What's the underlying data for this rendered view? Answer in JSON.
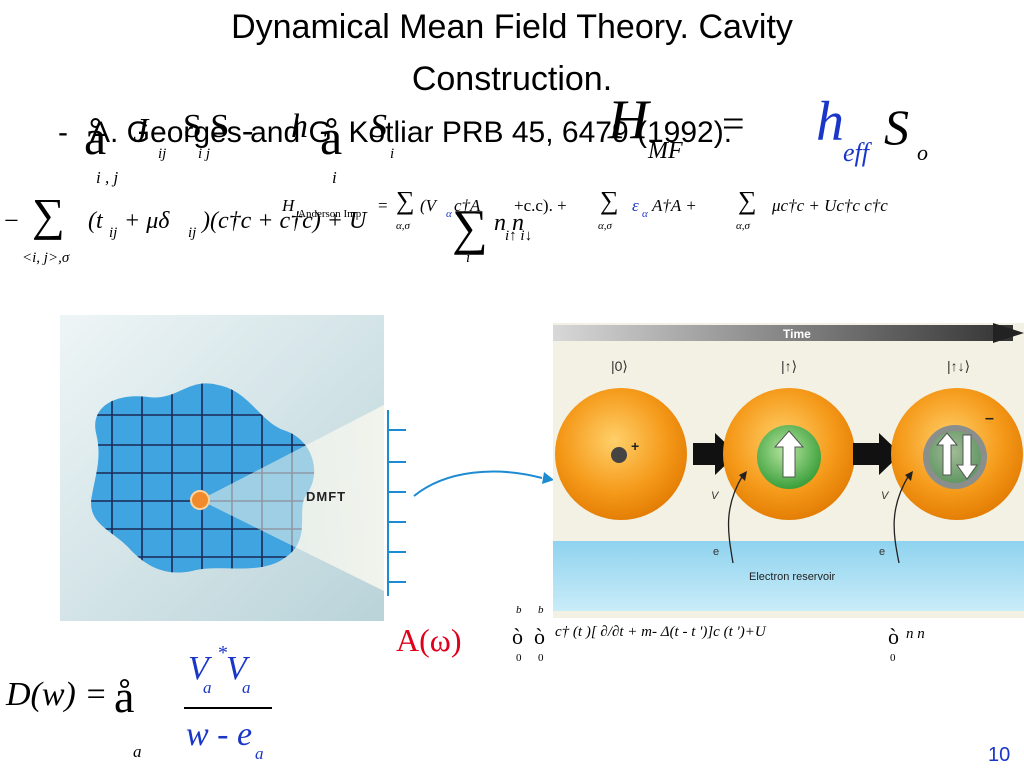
{
  "title": {
    "line1": "Dynamical Mean Field Theory. Cavity",
    "line2": "Construction."
  },
  "bullet": {
    "dash": "-",
    "citation": "A. Georges and G. Kotliar PRB 45, 6479 (1992)."
  },
  "overlay_eq": {
    "sum1": "å",
    "sum1_sub": "i , j",
    "term_j": "J",
    "term_j_sub": "ij",
    "term_s": "S S",
    "term_s_sub": "i  j",
    "minus": "-",
    "term_h": "h",
    "sum2": "å",
    "sum2_sub": "i",
    "term_si": "S",
    "term_si_sub": "i",
    "H": "H",
    "H_sub": "MF",
    "eq": "=",
    "h_eff": "h",
    "h_eff_sub": "eff",
    "S_o": "S",
    "S_o_sub": "o"
  },
  "hubbard": {
    "lead": "−",
    "sum": "∑",
    "sum_sub": "<i, j>,σ",
    "body": "(t",
    "t_sub": "ij",
    "mid": " + μδ",
    "delta_sub": "ij",
    "ops": ")(c†c + c†c) + U",
    "sum2": "∑",
    "sum2_sub": "i",
    "n_term": "n n",
    "n_sub": "i↑ i↓"
  },
  "anderson": {
    "H": "H",
    "H_sub": "Anderson Imp",
    "eq": "=",
    "sum1": "∑",
    "sum1_sub": "α,σ",
    "body1": "(V",
    "V_sub": "α",
    "body1b": "c†A",
    "body1c": "+c.c). +",
    "sum2": "∑",
    "sum2_sub": "α,σ",
    "eps": "ε",
    "eps_sub": "α",
    "body2": "A†A +",
    "sum3": "∑",
    "sum3_sub": "α,σ",
    "body3": "μc†c + Uc†c c†c"
  },
  "dmft_figure": {
    "label": "DMFT"
  },
  "time_figure": {
    "time_label": "Time",
    "state1": "|0⟩",
    "state2": "|↑⟩",
    "state3": "|↑↓⟩",
    "plus": "+",
    "minus": "–",
    "vv1": "V",
    "vv2": "V",
    "e1": "e",
    "e2": "e",
    "reservoir": "Electron reservoir"
  },
  "A_omega": "A(ω)",
  "action": {
    "b1": "b",
    "b2": "b",
    "z1": "0",
    "z2": "0",
    "int1": "ò",
    "int2": "ò",
    "body": "c† (t )[ ∂/∂t + m-  Δ(t - t ')]c  (t ')+U",
    "delta_part": "Δ(t - t ')",
    "int3": "ò",
    "z3": "0",
    "tail": "n  n"
  },
  "delta_eq": {
    "lhs": "D(w) =",
    "sum": "å",
    "sum_sub": "a",
    "num": "V",
    "num_sub": "a",
    "num_star": "*",
    "num2": "V",
    "num2_sub": "a",
    "den": "w -  e",
    "den_sub": "a"
  },
  "page_number": "10"
}
